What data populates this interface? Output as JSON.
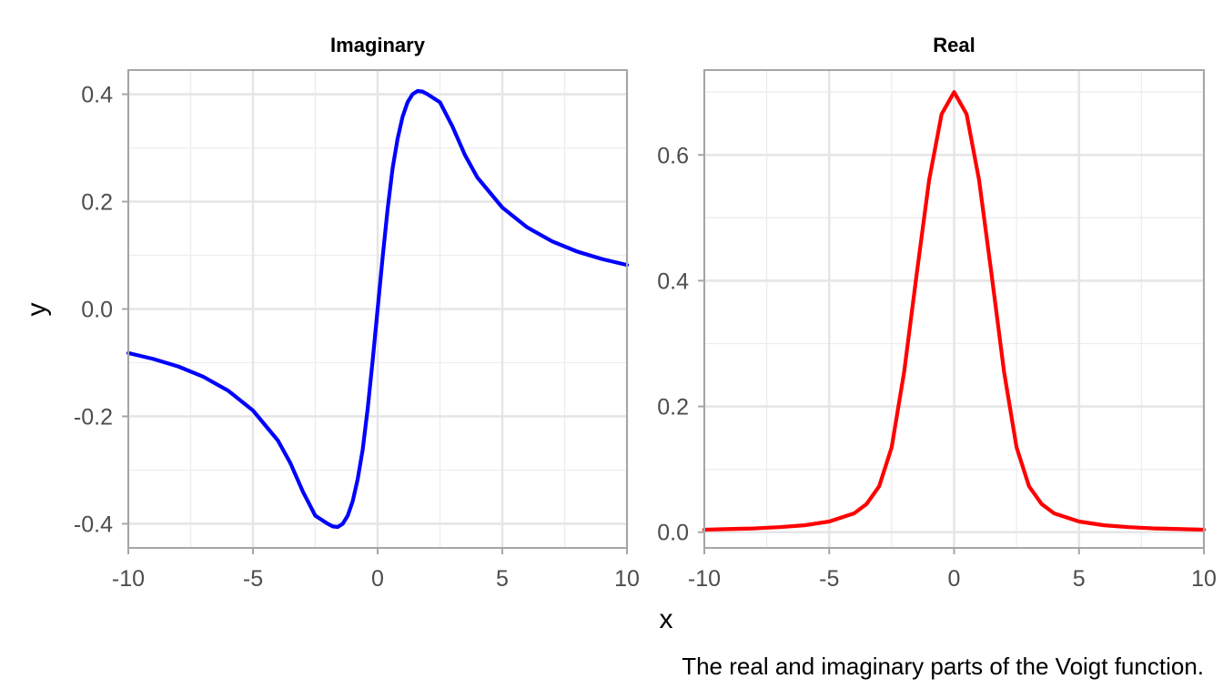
{
  "chart_data": [
    {
      "type": "line",
      "title": "Imaginary",
      "xlim": [
        -10,
        10
      ],
      "ylim": [
        -0.445,
        0.445
      ],
      "x_ticks": [
        -10,
        -5,
        0,
        5,
        10
      ],
      "y_ticks": [
        -0.4,
        -0.2,
        0.0,
        0.2,
        0.4
      ],
      "x_tick_labels": [
        "-10",
        "-5",
        "0",
        "5",
        "10"
      ],
      "y_tick_labels": [
        "-0.4",
        "-0.2",
        "0.0",
        "0.2",
        "0.4"
      ],
      "grid": true,
      "series": [
        {
          "color": "#0000ff",
          "x": [
            -10,
            -9,
            -8,
            -7,
            -6,
            -5,
            -4,
            -3.5,
            -3,
            -2.5,
            -2,
            -1.8,
            -1.6,
            -1.4,
            -1.2,
            -1,
            -0.8,
            -0.6,
            -0.4,
            -0.2,
            0,
            0.2,
            0.4,
            0.6,
            0.8,
            1,
            1.2,
            1.4,
            1.6,
            1.8,
            2,
            2.5,
            3,
            3.5,
            4,
            5,
            6,
            7,
            8,
            9,
            10
          ],
          "y": [
            -0.082,
            -0.093,
            -0.107,
            -0.126,
            -0.152,
            -0.189,
            -0.245,
            -0.287,
            -0.34,
            -0.385,
            -0.4,
            -0.405,
            -0.406,
            -0.4,
            -0.385,
            -0.358,
            -0.317,
            -0.262,
            -0.186,
            -0.096,
            0.0,
            0.096,
            0.186,
            0.262,
            0.317,
            0.358,
            0.385,
            0.4,
            0.406,
            0.405,
            0.4,
            0.385,
            0.34,
            0.287,
            0.245,
            0.189,
            0.152,
            0.126,
            0.107,
            0.093,
            0.082
          ]
        }
      ]
    },
    {
      "type": "line",
      "title": "Real",
      "xlim": [
        -10,
        10
      ],
      "ylim": [
        -0.025,
        0.735
      ],
      "x_ticks": [
        -10,
        -5,
        0,
        5,
        10
      ],
      "y_ticks": [
        0.0,
        0.2,
        0.4,
        0.6
      ],
      "x_tick_labels": [
        "-10",
        "-5",
        "0",
        "5",
        "10"
      ],
      "y_tick_labels": [
        "0.0",
        "0.2",
        "0.4",
        "0.6"
      ],
      "grid": true,
      "series": [
        {
          "color": "#ff0000",
          "x": [
            -10,
            -9,
            -8,
            -7,
            -6,
            -5,
            -4,
            -3.5,
            -3,
            -2.5,
            -2,
            -1.5,
            -1,
            -0.5,
            0,
            0.5,
            1,
            1.5,
            2,
            2.5,
            3,
            3.5,
            4,
            5,
            6,
            7,
            8,
            9,
            10
          ],
          "y": [
            0.004,
            0.005,
            0.006,
            0.008,
            0.011,
            0.017,
            0.03,
            0.045,
            0.073,
            0.135,
            0.255,
            0.41,
            0.56,
            0.665,
            0.7,
            0.665,
            0.56,
            0.41,
            0.255,
            0.135,
            0.073,
            0.045,
            0.03,
            0.017,
            0.011,
            0.008,
            0.006,
            0.005,
            0.004
          ]
        }
      ]
    }
  ],
  "axes": {
    "xlabel": "x",
    "ylabel": "y"
  },
  "caption": "The real and imaginary parts of the Voigt function."
}
